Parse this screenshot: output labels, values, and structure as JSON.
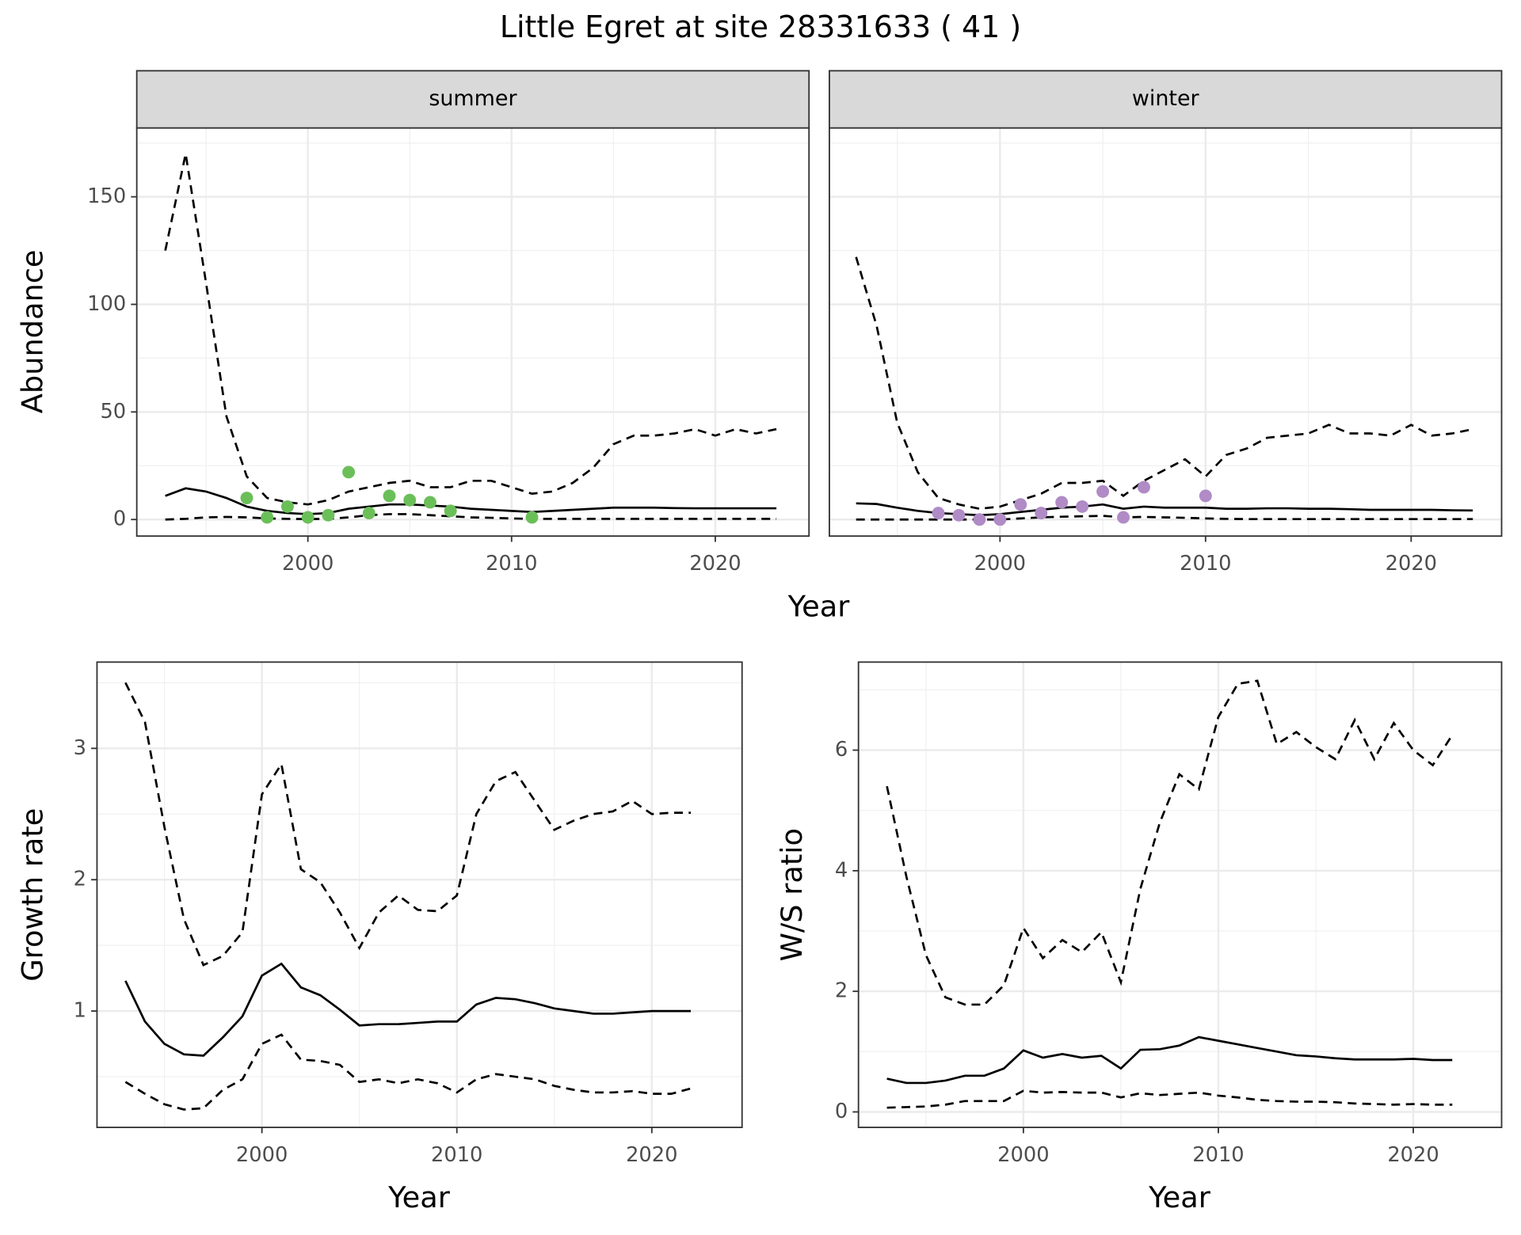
{
  "title": "Little Egret at site 28331633 ( 41 )",
  "chart_data": [
    {
      "type": "line",
      "facet": "summer",
      "x_label": "Year",
      "y_label": "Abundance",
      "x": [
        1993,
        1994,
        1995,
        1996,
        1997,
        1998,
        1999,
        2000,
        2001,
        2002,
        2003,
        2004,
        2005,
        2006,
        2007,
        2008,
        2009,
        2010,
        2011,
        2012,
        2013,
        2014,
        2015,
        2016,
        2017,
        2018,
        2019,
        2020,
        2021,
        2022,
        2023
      ],
      "xlim": [
        1991.6,
        2024.6
      ],
      "xticks": [
        2000,
        2010,
        2020
      ],
      "ylim": [
        -7.7,
        182
      ],
      "yticks": [
        0,
        50,
        100,
        150
      ],
      "ytick_labels": true,
      "grid": true,
      "series": [
        {
          "color": "#000000",
          "dash": true,
          "values": [
            125,
            170,
            110,
            48,
            20,
            10,
            8,
            7,
            9,
            13,
            15,
            17,
            18,
            15,
            15,
            18,
            18,
            15,
            12,
            13,
            17,
            24,
            35,
            39,
            39,
            40,
            42,
            39,
            42,
            40,
            42
          ]
        },
        {
          "color": "#000000",
          "dash": false,
          "values": [
            11,
            14.5,
            13,
            10,
            6,
            4,
            3,
            2.5,
            3,
            5,
            6,
            7,
            7,
            6.5,
            6,
            5,
            4.5,
            4,
            3.5,
            4,
            4.5,
            5,
            5.5,
            5.5,
            5.5,
            5.3,
            5.2,
            5.2,
            5.2,
            5.2,
            5.2
          ]
        },
        {
          "color": "#000000",
          "dash": true,
          "values": [
            0,
            0.3,
            1,
            1.2,
            1,
            0.5,
            0.3,
            0.2,
            0.3,
            1,
            2,
            2.5,
            2.5,
            2,
            1.5,
            1,
            0.8,
            0.5,
            0.3,
            0.3,
            0.3,
            0.3,
            0.3,
            0.3,
            0.3,
            0.3,
            0.3,
            0.3,
            0.3,
            0.3,
            0.3
          ]
        }
      ],
      "points": {
        "color": "#6bbf59",
        "x": [
          1997,
          1998,
          1999,
          2000,
          2001,
          2002,
          2003,
          2004,
          2005,
          2006,
          2007,
          2011
        ],
        "values": [
          10,
          1,
          6,
          1,
          2,
          22,
          3,
          11,
          9,
          8,
          4,
          1
        ]
      }
    },
    {
      "type": "line",
      "facet": "winter",
      "x": [
        1993,
        1994,
        1995,
        1996,
        1997,
        1998,
        1999,
        2000,
        2001,
        2002,
        2003,
        2004,
        2005,
        2006,
        2007,
        2008,
        2009,
        2010,
        2011,
        2012,
        2013,
        2014,
        2015,
        2016,
        2017,
        2018,
        2019,
        2020,
        2021,
        2022,
        2023
      ],
      "xlim": [
        1991.7,
        2024.4
      ],
      "xticks": [
        2000,
        2010,
        2020
      ],
      "ylim": [
        -7.7,
        182
      ],
      "yticks": [
        0,
        50,
        100,
        150
      ],
      "ytick_labels": false,
      "grid": true,
      "series": [
        {
          "color": "#000000",
          "dash": true,
          "values": [
            122,
            90,
            45,
            22,
            10,
            7,
            5,
            6,
            9,
            12,
            17,
            17,
            18,
            11,
            18,
            23,
            28,
            20,
            30,
            33,
            38,
            39,
            40,
            44,
            40,
            40,
            39,
            44,
            39,
            40,
            42
          ]
        },
        {
          "color": "#000000",
          "dash": false,
          "values": [
            7.5,
            7.2,
            5.5,
            4,
            3,
            2.5,
            2,
            2.5,
            3.5,
            4.5,
            5.5,
            6,
            7,
            5,
            6,
            5.5,
            5.5,
            5.5,
            5,
            5,
            5.2,
            5.2,
            5,
            5,
            4.8,
            4.5,
            4.5,
            4.5,
            4.5,
            4.3,
            4.2
          ]
        },
        {
          "color": "#000000",
          "dash": true,
          "values": [
            0,
            0,
            0,
            0,
            0,
            0,
            0,
            0,
            0.5,
            1,
            1.3,
            1.5,
            1.7,
            1,
            1.2,
            1,
            0.8,
            0.5,
            0.3,
            0.2,
            0.2,
            0.2,
            0.2,
            0.2,
            0.2,
            0.2,
            0.2,
            0.2,
            0.2,
            0.2,
            0.2
          ]
        }
      ],
      "points": {
        "color": "#b08bc6",
        "x": [
          1997,
          1998,
          1999,
          2000,
          2001,
          2002,
          2003,
          2004,
          2005,
          2006,
          2007,
          2010
        ],
        "values": [
          3,
          2,
          0,
          0,
          7,
          3,
          8,
          6,
          13,
          1,
          15,
          11
        ]
      }
    },
    {
      "type": "line",
      "x_label": "Year",
      "y_label": "Growth rate",
      "x": [
        1993,
        1994,
        1995,
        1996,
        1997,
        1998,
        1999,
        2000,
        2001,
        2002,
        2003,
        2004,
        2005,
        2006,
        2007,
        2008,
        2009,
        2010,
        2011,
        2012,
        2013,
        2014,
        2015,
        2016,
        2017,
        2018,
        2019,
        2020,
        2021,
        2022
      ],
      "xlim": [
        1991.54,
        2024.63
      ],
      "xticks": [
        2000,
        2010,
        2020
      ],
      "ylim": [
        0.114,
        3.657
      ],
      "yticks": [
        1,
        2,
        3
      ],
      "ytick_labels": true,
      "grid": true,
      "series": [
        {
          "color": "#000000",
          "dash": true,
          "values": [
            3.5,
            3.2,
            2.4,
            1.7,
            1.35,
            1.42,
            1.6,
            2.65,
            2.88,
            2.08,
            1.98,
            1.75,
            1.48,
            1.75,
            1.88,
            1.77,
            1.76,
            1.88,
            2.5,
            2.75,
            2.82,
            2.6,
            2.38,
            2.45,
            2.5,
            2.52,
            2.6,
            2.5,
            2.51,
            2.51
          ]
        },
        {
          "color": "#000000",
          "dash": false,
          "values": [
            1.23,
            0.92,
            0.75,
            0.67,
            0.66,
            0.8,
            0.96,
            1.27,
            1.36,
            1.18,
            1.12,
            1.01,
            0.89,
            0.9,
            0.9,
            0.91,
            0.92,
            0.92,
            1.05,
            1.1,
            1.09,
            1.06,
            1.02,
            1.0,
            0.98,
            0.98,
            0.99,
            1.0,
            1.0,
            1.0
          ]
        },
        {
          "color": "#000000",
          "dash": true,
          "values": [
            0.46,
            0.37,
            0.29,
            0.25,
            0.26,
            0.4,
            0.48,
            0.75,
            0.82,
            0.63,
            0.62,
            0.59,
            0.46,
            0.48,
            0.45,
            0.48,
            0.45,
            0.38,
            0.48,
            0.52,
            0.5,
            0.48,
            0.43,
            0.4,
            0.38,
            0.38,
            0.39,
            0.37,
            0.37,
            0.41
          ]
        }
      ]
    },
    {
      "type": "line",
      "x_label": "Year",
      "y_label": "W/S ratio",
      "x": [
        1993,
        1994,
        1995,
        1996,
        1997,
        1998,
        1999,
        2000,
        2001,
        2002,
        2003,
        2004,
        2005,
        2006,
        2007,
        2008,
        2009,
        2010,
        2011,
        2012,
        2013,
        2014,
        2015,
        2016,
        2017,
        2018,
        2019,
        2020,
        2021,
        2022
      ],
      "xlim": [
        1991.54,
        2024.53
      ],
      "xticks": [
        2000,
        2010,
        2020
      ],
      "ylim": [
        -0.257,
        7.46
      ],
      "yticks": [
        0,
        2,
        4,
        6
      ],
      "ytick_labels": true,
      "grid": true,
      "series": [
        {
          "color": "#000000",
          "dash": true,
          "values": [
            5.4,
            3.9,
            2.6,
            1.9,
            1.78,
            1.78,
            2.1,
            3.05,
            2.55,
            2.85,
            2.65,
            2.98,
            2.15,
            3.7,
            4.8,
            5.6,
            5.35,
            6.55,
            7.1,
            7.15,
            6.1,
            6.3,
            6.05,
            5.85,
            6.5,
            5.85,
            6.45,
            6.0,
            5.75,
            6.25
          ]
        },
        {
          "color": "#000000",
          "dash": false,
          "values": [
            0.55,
            0.48,
            0.48,
            0.52,
            0.6,
            0.6,
            0.72,
            1.02,
            0.9,
            0.96,
            0.9,
            0.93,
            0.72,
            1.03,
            1.04,
            1.1,
            1.24,
            1.18,
            1.12,
            1.06,
            1.0,
            0.94,
            0.92,
            0.89,
            0.87,
            0.87,
            0.87,
            0.88,
            0.86,
            0.86
          ]
        },
        {
          "color": "#000000",
          "dash": true,
          "values": [
            0.07,
            0.08,
            0.09,
            0.12,
            0.18,
            0.18,
            0.18,
            0.35,
            0.32,
            0.33,
            0.32,
            0.32,
            0.24,
            0.31,
            0.28,
            0.3,
            0.32,
            0.27,
            0.24,
            0.2,
            0.18,
            0.17,
            0.17,
            0.16,
            0.14,
            0.13,
            0.12,
            0.13,
            0.12,
            0.12
          ]
        }
      ]
    }
  ]
}
